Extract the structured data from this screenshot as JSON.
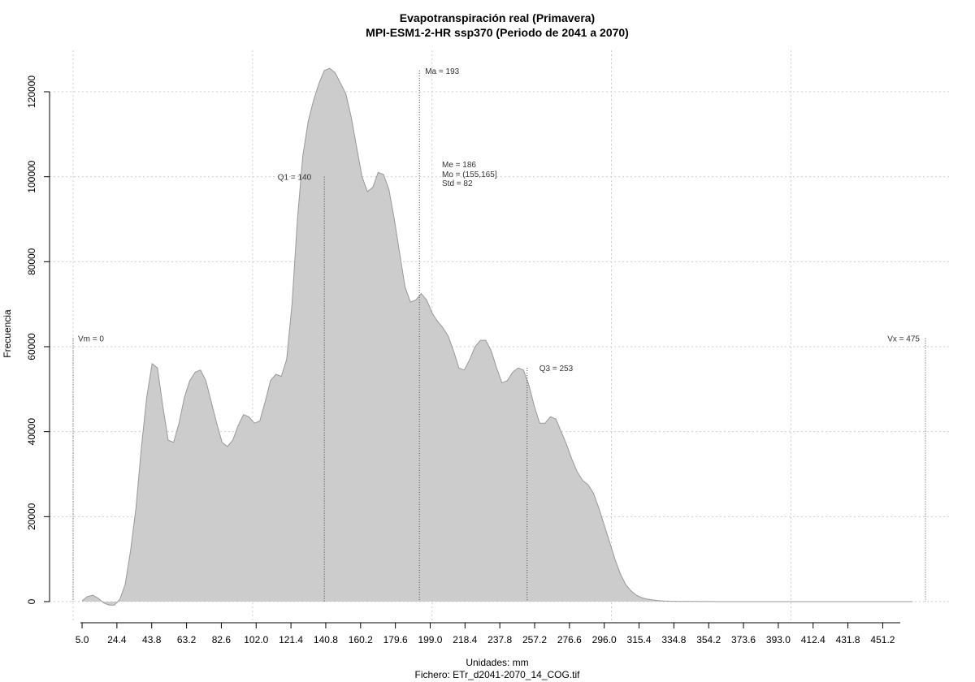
{
  "chart_data": {
    "type": "area",
    "title": "Evapotranspiración real (Primavera)",
    "subtitle": "MPI-ESM1-2-HR ssp370 (Periodo de 2041 a 2070)",
    "xlabel": "Unidades: mm",
    "source_label": "Fichero: ETr_d2041-2070_14_COG.tif",
    "ylabel": "Frecuencia",
    "xlim": [
      0,
      475
    ],
    "ylim": [
      0,
      125000
    ],
    "grid": true,
    "fill_color": "#cccccc",
    "line_color": "#999999",
    "x_ticks": [
      {
        "value": 5.0,
        "label": "5.0"
      },
      {
        "value": 24.4,
        "label": "24.4"
      },
      {
        "value": 43.8,
        "label": "43.8"
      },
      {
        "value": 63.2,
        "label": "63.2"
      },
      {
        "value": 82.6,
        "label": "82.6"
      },
      {
        "value": 102.0,
        "label": "102.0"
      },
      {
        "value": 121.4,
        "label": "121.4"
      },
      {
        "value": 140.8,
        "label": "140.8"
      },
      {
        "value": 160.2,
        "label": "160.2"
      },
      {
        "value": 179.6,
        "label": "179.6"
      },
      {
        "value": 199.0,
        "label": "199.0"
      },
      {
        "value": 218.4,
        "label": "218.4"
      },
      {
        "value": 237.8,
        "label": "237.8"
      },
      {
        "value": 257.2,
        "label": "257.2"
      },
      {
        "value": 276.6,
        "label": "276.6"
      },
      {
        "value": 296.0,
        "label": "296.0"
      },
      {
        "value": 315.4,
        "label": "315.4"
      },
      {
        "value": 334.8,
        "label": "334.8"
      },
      {
        "value": 354.2,
        "label": "354.2"
      },
      {
        "value": 373.6,
        "label": "373.6"
      },
      {
        "value": 393.0,
        "label": "393.0"
      },
      {
        "value": 412.4,
        "label": "412.4"
      },
      {
        "value": 431.8,
        "label": "431.8"
      },
      {
        "value": 451.2,
        "label": "451.2"
      }
    ],
    "y_ticks": [
      {
        "value": 0,
        "label": "0"
      },
      {
        "value": 20000,
        "label": "20000"
      },
      {
        "value": 40000,
        "label": "40000"
      },
      {
        "value": 60000,
        "label": "60000"
      },
      {
        "value": 80000,
        "label": "80000"
      },
      {
        "value": 100000,
        "label": "100000"
      },
      {
        "value": 120000,
        "label": "120000"
      }
    ],
    "x_grid": [
      0,
      100,
      200,
      300,
      400
    ],
    "y_grid": [
      0,
      20000,
      40000,
      60000,
      80000,
      100000,
      120000
    ],
    "series": [
      {
        "x": [
          5,
          8,
          11,
          14,
          17,
          20,
          23,
          26,
          29,
          32,
          35,
          38,
          41,
          44,
          47,
          50,
          53,
          56,
          59,
          62,
          65,
          68,
          71,
          74,
          77,
          80,
          83,
          86,
          89,
          92,
          95,
          98,
          101,
          104,
          107,
          110,
          113,
          116,
          119,
          122,
          125,
          128,
          131,
          134,
          137,
          140,
          143,
          146,
          149,
          152,
          155,
          158,
          161,
          164,
          167,
          170,
          173,
          176,
          179,
          182,
          185,
          188,
          191,
          194,
          197,
          200,
          203,
          206,
          209,
          212,
          215,
          218,
          221,
          224,
          227,
          230,
          233,
          236,
          239,
          242,
          245,
          248,
          251,
          254,
          257,
          260,
          263,
          266,
          269,
          272,
          275,
          278,
          281,
          284,
          287,
          290,
          293,
          296,
          299,
          302,
          305,
          308,
          311,
          314,
          317,
          320,
          323,
          326,
          329,
          332,
          335,
          338,
          341,
          344,
          347,
          350,
          353,
          356,
          359,
          362,
          365,
          368,
          371,
          374,
          377,
          380,
          383,
          386,
          389,
          392,
          395,
          398,
          401,
          404,
          407,
          412,
          420,
          430,
          440,
          450,
          460,
          468
        ],
        "y": [
          200,
          1200,
          1500,
          800,
          -300,
          -800,
          -800,
          500,
          4000,
          12000,
          22000,
          36000,
          48000,
          56000,
          55000,
          46000,
          38000,
          37500,
          42000,
          48000,
          52000,
          54000,
          54500,
          52000,
          47000,
          42000,
          37500,
          36500,
          38000,
          41500,
          44000,
          43500,
          42000,
          42500,
          47000,
          52000,
          53500,
          53000,
          57000,
          70000,
          90000,
          105000,
          113000,
          118000,
          122000,
          125000,
          125500,
          124500,
          122000,
          119500,
          114000,
          107000,
          100000,
          96500,
          97500,
          101000,
          100500,
          97000,
          90000,
          82000,
          74000,
          70500,
          71000,
          72500,
          71000,
          68000,
          66000,
          64500,
          62500,
          59000,
          55000,
          54500,
          57000,
          60000,
          61500,
          61500,
          59000,
          55000,
          51500,
          52000,
          54000,
          55000,
          54500,
          51000,
          46000,
          42000,
          42000,
          43500,
          43000,
          40000,
          37000,
          33500,
          30500,
          28500,
          27500,
          25500,
          22000,
          18000,
          14000,
          10000,
          6500,
          4000,
          2500,
          1500,
          900,
          600,
          400,
          250,
          150,
          100,
          80,
          60,
          50,
          40,
          30,
          20,
          15,
          10,
          8,
          5,
          3,
          2,
          1,
          1,
          0,
          0,
          0,
          0,
          0,
          0,
          0,
          0,
          0,
          0,
          0,
          0,
          0,
          0,
          0,
          0,
          0,
          0
        ]
      }
    ],
    "annotations": [
      {
        "id": "vm",
        "x": 0,
        "y": 62000,
        "label": "Vm = 0"
      },
      {
        "id": "q1",
        "x": 140,
        "y": 100000,
        "label": "Q1 = 140"
      },
      {
        "id": "ma",
        "x": 193,
        "y": 125000,
        "label": "Ma = 193"
      },
      {
        "id": "q3",
        "x": 253,
        "y": 55000,
        "label": "Q3 = 253"
      },
      {
        "id": "vx",
        "x": 475,
        "y": 62000,
        "label": "Vx = 475"
      }
    ],
    "stats": {
      "me": "Me = 186",
      "mo": "Mo = (155,165]",
      "std": "Std = 82"
    }
  }
}
